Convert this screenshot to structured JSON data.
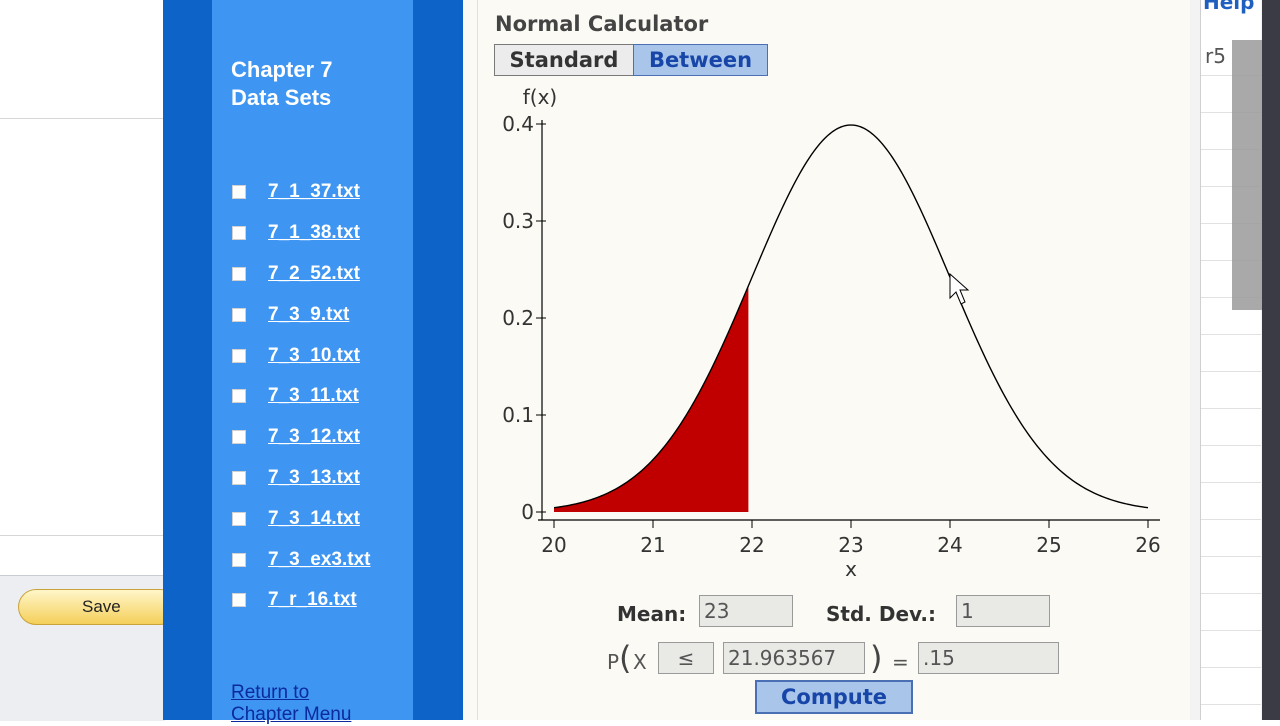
{
  "left_window": {
    "save_label": "Save"
  },
  "sidebar": {
    "title_line1": "Chapter 7",
    "title_line2": "Data Sets",
    "files": [
      "7_1_37.txt",
      "7_1_38.txt",
      "7_2_52.txt",
      "7_3_9.txt",
      "7_3_10.txt",
      "7_3_11.txt",
      "7_3_12.txt",
      "7_3_13.txt",
      "7_3_14.txt",
      "7_3_ex3.txt",
      "7_r_16.txt"
    ],
    "return_line1": "Return to",
    "return_line2": "Chapter Menu"
  },
  "calculator": {
    "title": "Normal Calculator",
    "tabs": {
      "standard": "Standard",
      "between": "Between",
      "active": "between"
    },
    "mean_label": "Mean:",
    "mean_value": "23",
    "sd_label": "Std. Dev.:",
    "sd_value": "1",
    "prob_prefix": "P",
    "prob_var": "X",
    "operator": "≤",
    "x_value": "21.963567",
    "equals": "=",
    "prob_value": ".15",
    "compute_label": "Compute"
  },
  "chart_data": {
    "type": "area",
    "distribution": "normal",
    "mean": 23,
    "sd": 1,
    "xlabel": "x",
    "ylabel": "f(x)",
    "xlim": [
      20,
      26
    ],
    "ylim": [
      0,
      0.4
    ],
    "x_ticks": [
      "20",
      "21",
      "22",
      "23",
      "24",
      "25",
      "26"
    ],
    "y_ticks": [
      "0",
      "0.1",
      "0.2",
      "0.3",
      "0.4"
    ],
    "shaded_region": {
      "from": 20,
      "to": 21.963567,
      "color": "#c00000"
    },
    "curve_color": "#000000"
  },
  "right_window": {
    "help_label": "Help",
    "cell_text": "r5"
  }
}
